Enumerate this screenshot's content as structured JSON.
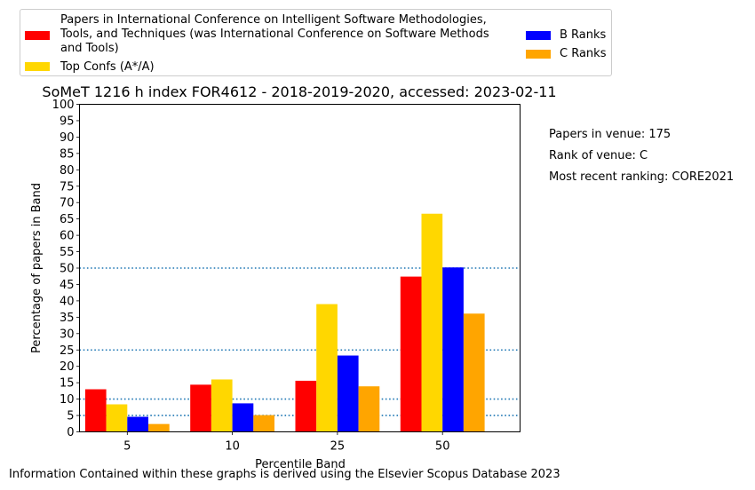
{
  "chart_data": {
    "type": "bar",
    "title": "SoMeT 1216 h index FOR4612 - 2018-2019-2020, accessed: 2023-02-11",
    "xlabel": "Percentile Band",
    "ylabel": "Percentage of papers in Band",
    "categories": [
      "5",
      "10",
      "25",
      "50"
    ],
    "ylim": [
      0,
      100
    ],
    "yticks": [
      0,
      5,
      10,
      15,
      20,
      25,
      30,
      35,
      40,
      45,
      50,
      55,
      60,
      65,
      70,
      75,
      80,
      85,
      90,
      95,
      100
    ],
    "reference_lines": [
      5,
      10,
      25,
      50
    ],
    "legend_position": "top",
    "series": [
      {
        "name": "Papers in International Conference on Intelligent Software Methodologies, Tools, and Techniques (was International Conference on Software Methods and Tools)",
        "color": "#ff0000",
        "values": [
          13.0,
          14.4,
          15.6,
          47.4
        ]
      },
      {
        "name": "Top Confs (A*/A)",
        "color": "#ffd700",
        "values": [
          8.4,
          16.0,
          39.0,
          66.6
        ]
      },
      {
        "name": "B Ranks",
        "color": "#0000ff",
        "values": [
          4.6,
          8.7,
          23.3,
          50.2
        ]
      },
      {
        "name": "C Ranks",
        "color": "#ffa500",
        "values": [
          2.4,
          5.1,
          13.9,
          36.1
        ]
      }
    ]
  },
  "annotations": {
    "papers_in_venue": "Papers in venue: 175",
    "rank_of_venue": "Rank of venue: C",
    "recent_ranking": "Most recent ranking: CORE2021"
  },
  "footer": "Information Contained within these graphs is derived using the Elsevier Scopus Database 2023"
}
